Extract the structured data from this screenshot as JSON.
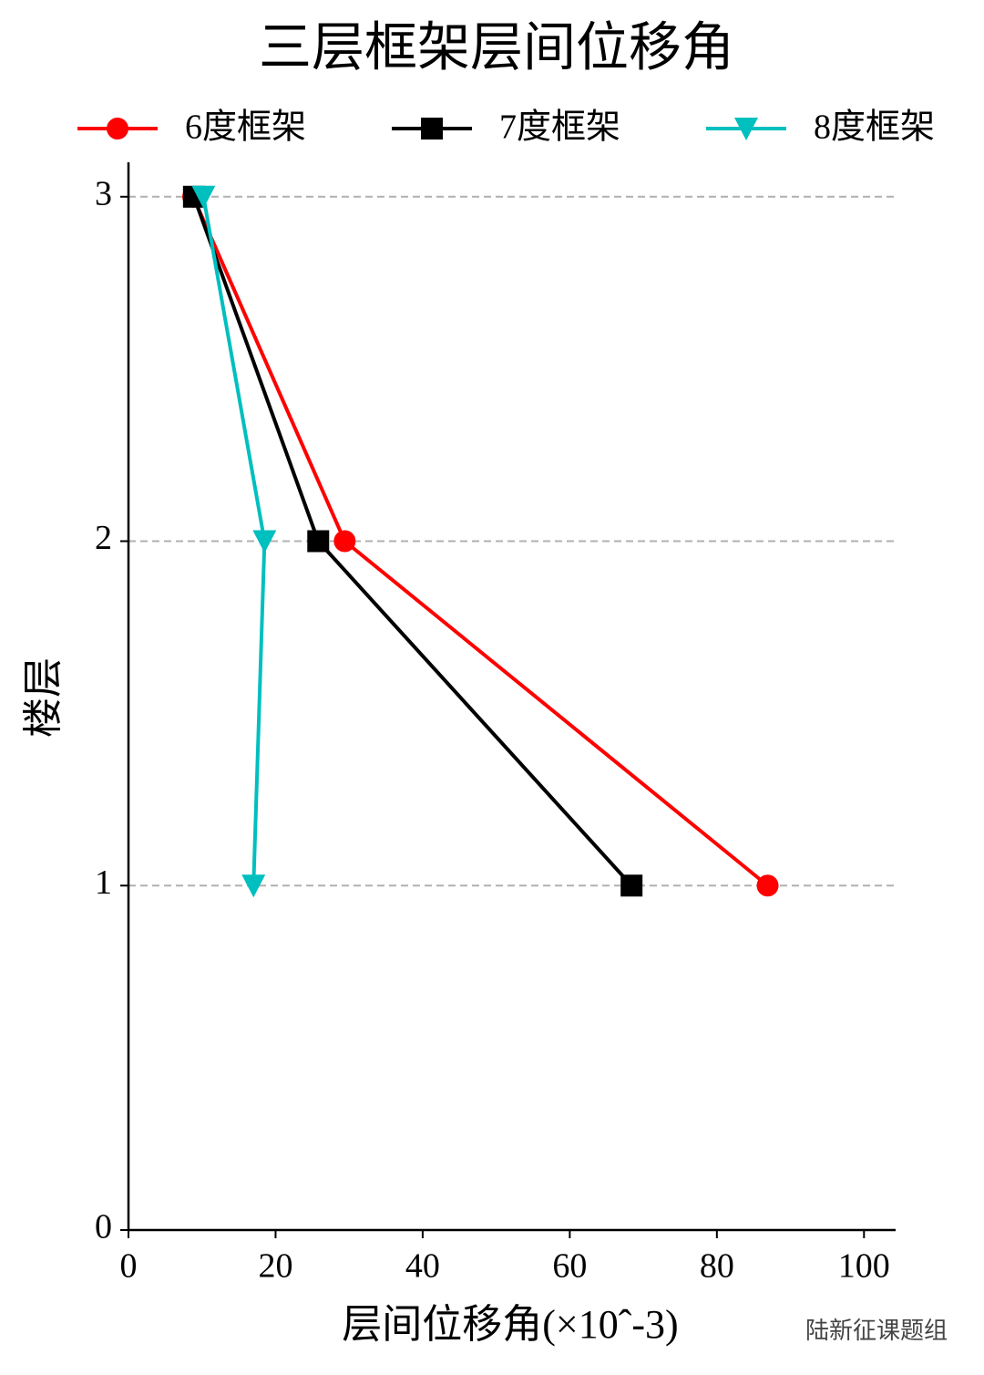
{
  "chart_data": {
    "type": "line",
    "title": "三层框架层间位移角",
    "x_label": "层间位移角(×10ˆ-3)",
    "y_label": "楼层",
    "series": [
      {
        "name": "6度框架",
        "color": "#ff0000",
        "marker": "circle",
        "x": [
          86.9,
          29.4,
          8.8
        ],
        "values": [
          1,
          2,
          3
        ]
      },
      {
        "name": "7度框架",
        "color": "#000000",
        "marker": "square",
        "x": [
          68.4,
          25.8,
          8.9
        ],
        "values": [
          1,
          2,
          3
        ]
      },
      {
        "name": "8度框架",
        "color": "#00bfbf",
        "marker": "triangle-down",
        "x": [
          17.0,
          18.5,
          10.2
        ],
        "values": [
          1,
          2,
          3
        ]
      }
    ],
    "xlim": [
      0,
      104.3
    ],
    "xticks": [
      0,
      20,
      40,
      60,
      80,
      100
    ],
    "ylim": [
      0,
      3.1
    ],
    "yticks": [
      0,
      1,
      2,
      3
    ],
    "grid": true,
    "watermark": "陆新征课题组"
  }
}
